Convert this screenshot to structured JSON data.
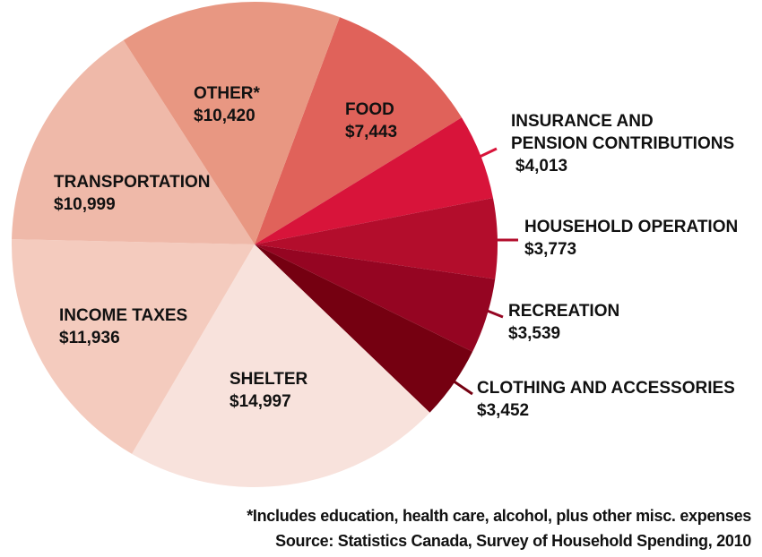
{
  "chart_data": {
    "type": "pie",
    "title": "",
    "slices": [
      {
        "label": "FOOD",
        "value_label": "$7,443",
        "value": 7443,
        "color": "#e0625a"
      },
      {
        "label": "INSURANCE AND PENSION CONTRIBUTIONS",
        "label_lines": [
          "INSURANCE AND",
          "PENSION CONTRIBUTIONS"
        ],
        "value_label": "$4,013",
        "value": 4013,
        "color": "#d8143a"
      },
      {
        "label": "HOUSEHOLD OPERATION",
        "value_label": "$3,773",
        "value": 3773,
        "color": "#b30d2c"
      },
      {
        "label": "RECREATION",
        "value_label": "$3,539",
        "value": 3539,
        "color": "#950522"
      },
      {
        "label": "CLOTHING AND ACCESSORIES",
        "value_label": "$3,452",
        "value": 3452,
        "color": "#750011"
      },
      {
        "label": "SHELTER",
        "value_label": "$14,997",
        "value": 14997,
        "color": "#f8e2dc"
      },
      {
        "label": "INCOME TAXES",
        "value_label": "$11,936",
        "value": 11936,
        "color": "#f4cbbe"
      },
      {
        "label": "TRANSPORTATION",
        "value_label": "$10,999",
        "value": 10999,
        "color": "#efb9a9"
      },
      {
        "label": "OTHER*",
        "value_label": "$10,420",
        "value": 10420,
        "color": "#e89782"
      }
    ],
    "footnote": "*Includes education, health care, alcohol, plus other misc. expenses",
    "source": "Source: Statistics Canada, Survey of Household Spending, 2010"
  }
}
